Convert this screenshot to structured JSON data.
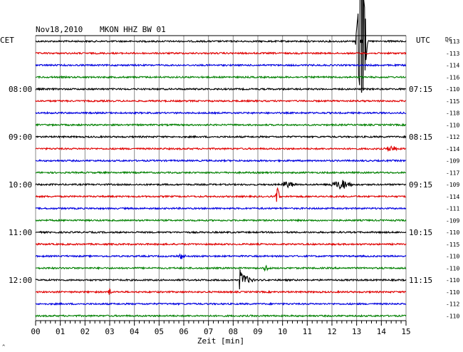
{
  "header": {
    "date": "Nov18,2010",
    "station": "MKON HHZ BW 01"
  },
  "labels": {
    "left_tz": "CET",
    "right_tz": "UTC",
    "dc_header": "DC",
    "xlabel": "Zeit [min]",
    "corner_mark": "^"
  },
  "chart_data": {
    "type": "line",
    "title": "Nov18,2010   MKON HHZ BW 01",
    "xlabel": "Zeit [min]",
    "ylabel": "",
    "xlim": [
      0,
      15
    ],
    "x_ticks": [
      "00",
      "01",
      "02",
      "03",
      "04",
      "05",
      "06",
      "07",
      "08",
      "09",
      "10",
      "11",
      "12",
      "13",
      "14",
      "15"
    ],
    "x_minor_ticks_per_minute": 5,
    "grid": true,
    "trace_count": 24,
    "trace_colors": [
      "#000000",
      "#e00000",
      "#0000e0",
      "#008000"
    ],
    "trace_interval_minutes": 15,
    "left_time_labels": [
      {
        "trace": 4,
        "label": "08:00"
      },
      {
        "trace": 8,
        "label": "09:00"
      },
      {
        "trace": 12,
        "label": "10:00"
      },
      {
        "trace": 16,
        "label": "11:00"
      },
      {
        "trace": 20,
        "label": "12:00"
      }
    ],
    "right_time_labels": [
      {
        "trace": 4,
        "label": "07:15"
      },
      {
        "trace": 8,
        "label": "08:15"
      },
      {
        "trace": 12,
        "label": "09:15"
      },
      {
        "trace": 16,
        "label": "10:15"
      },
      {
        "trace": 20,
        "label": "11:15"
      }
    ],
    "dc_offsets": [
      -113,
      -113,
      -114,
      -116,
      -110,
      -115,
      -118,
      -110,
      -112,
      -114,
      -109,
      -117,
      -109,
      -114,
      -111,
      -109,
      -110,
      -115,
      -110,
      -110,
      -110,
      -110,
      -112,
      -110
    ],
    "events": [
      {
        "trace": 0,
        "minute": 13.2,
        "amplitude": 9.0,
        "duration": 0.25,
        "kind": "spike"
      },
      {
        "trace": 9,
        "minute": 14.4,
        "amplitude": 0.7,
        "duration": 0.3,
        "kind": "burst"
      },
      {
        "trace": 12,
        "minute": 10.2,
        "amplitude": 0.6,
        "duration": 0.4,
        "kind": "burst"
      },
      {
        "trace": 12,
        "minute": 12.4,
        "amplitude": 0.9,
        "duration": 0.6,
        "kind": "burst"
      },
      {
        "trace": 13,
        "minute": 9.8,
        "amplitude": 1.1,
        "duration": 0.1,
        "kind": "spike"
      },
      {
        "trace": 18,
        "minute": 5.9,
        "amplitude": 0.6,
        "duration": 0.2,
        "kind": "burst"
      },
      {
        "trace": 19,
        "minute": 9.3,
        "amplitude": 0.5,
        "duration": 0.2,
        "kind": "burst"
      },
      {
        "trace": 20,
        "minute": 8.3,
        "amplitude": 1.4,
        "duration": 0.6,
        "kind": "quake"
      },
      {
        "trace": 21,
        "minute": 3.0,
        "amplitude": 0.4,
        "duration": 0.1,
        "kind": "spike"
      }
    ]
  }
}
